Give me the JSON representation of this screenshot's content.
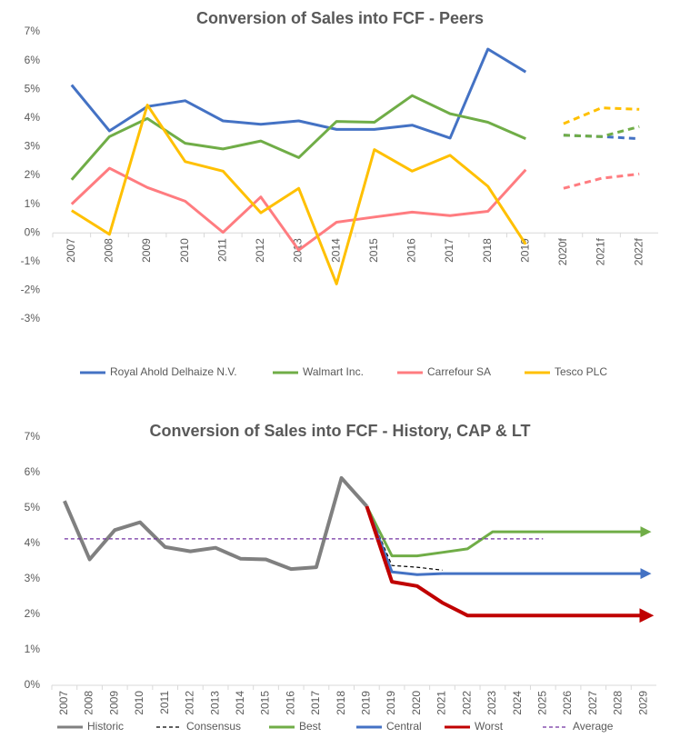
{
  "chart_data": [
    {
      "type": "line",
      "title": "Conversion of Sales into FCF - Peers",
      "categories": [
        "2007",
        "2008",
        "2009",
        "2010",
        "2011",
        "2012",
        "2013",
        "2014",
        "2015",
        "2016",
        "2017",
        "2018",
        "2019",
        "2020f",
        "2021f",
        "2022f"
      ],
      "ylim": [
        -3,
        7
      ],
      "yticks": [
        {
          "value": -3,
          "label": "-3%"
        },
        {
          "value": -2,
          "label": "-2%"
        },
        {
          "value": -1,
          "label": "-1%"
        },
        {
          "value": 0,
          "label": "0%"
        },
        {
          "value": 1,
          "label": "1%"
        },
        {
          "value": 2,
          "label": "2%"
        },
        {
          "value": 3,
          "label": "3%"
        },
        {
          "value": 4,
          "label": "4%"
        },
        {
          "value": 5,
          "label": "5%"
        },
        {
          "value": 6,
          "label": "6%"
        },
        {
          "value": 7,
          "label": "7%"
        }
      ],
      "grid": false,
      "legend": "bottom",
      "series": [
        {
          "name": "Royal Ahold Delhaize N.V.",
          "color": "#4472c4",
          "values": [
            5.15,
            3.55,
            4.4,
            4.6,
            3.9,
            3.78,
            3.9,
            3.6,
            3.6,
            3.75,
            3.3,
            6.4,
            5.6,
            null,
            null,
            null
          ],
          "forecast": [
            null,
            null,
            null,
            null,
            null,
            null,
            null,
            null,
            null,
            null,
            null,
            null,
            null,
            3.4,
            3.35,
            3.28
          ]
        },
        {
          "name": "Walmart Inc.",
          "color": "#70ad47",
          "values": [
            1.85,
            3.35,
            3.98,
            3.12,
            2.92,
            3.2,
            2.62,
            3.88,
            3.85,
            4.78,
            4.15,
            3.85,
            3.28,
            null,
            null,
            null
          ],
          "forecast": [
            null,
            null,
            null,
            null,
            null,
            null,
            null,
            null,
            null,
            null,
            null,
            null,
            null,
            3.4,
            3.35,
            3.7
          ]
        },
        {
          "name": "Carrefour SA",
          "color": "#ff7c80",
          "values": [
            1.0,
            2.25,
            1.58,
            1.1,
            0.02,
            1.25,
            -0.6,
            0.37,
            0.55,
            0.72,
            0.6,
            0.75,
            2.2,
            null,
            null,
            null
          ],
          "forecast": [
            null,
            null,
            null,
            null,
            null,
            null,
            null,
            null,
            null,
            null,
            null,
            null,
            null,
            1.55,
            1.9,
            2.05
          ]
        },
        {
          "name": "Tesco PLC",
          "color": "#ffc000",
          "values": [
            0.78,
            -0.05,
            4.45,
            2.48,
            2.15,
            0.7,
            1.55,
            -1.78,
            2.9,
            2.15,
            2.7,
            1.62,
            -0.4,
            null,
            null,
            null
          ],
          "forecast": [
            null,
            null,
            null,
            null,
            null,
            null,
            null,
            null,
            null,
            null,
            null,
            null,
            null,
            3.8,
            4.35,
            4.3
          ]
        }
      ]
    },
    {
      "type": "line",
      "title": "Conversion of Sales into FCF - History, CAP & LT",
      "categories": [
        "2007",
        "2008",
        "2009",
        "2010",
        "2011",
        "2012",
        "2013",
        "2014",
        "2015",
        "2016",
        "2017",
        "2018",
        "2019",
        "2019",
        "2020",
        "2021",
        "2022",
        "2023",
        "2024",
        "2025",
        "2026",
        "2027",
        "2028",
        "2029"
      ],
      "ylim": [
        0,
        7
      ],
      "yticks": [
        {
          "value": 0,
          "label": "0%"
        },
        {
          "value": 1,
          "label": "1%"
        },
        {
          "value": 2,
          "label": "2%"
        },
        {
          "value": 3,
          "label": "3%"
        },
        {
          "value": 4,
          "label": "4%"
        },
        {
          "value": 5,
          "label": "5%"
        },
        {
          "value": 6,
          "label": "6%"
        },
        {
          "value": 7,
          "label": "7%"
        }
      ],
      "grid": false,
      "legend": "bottom",
      "series": [
        {
          "name": "Historic",
          "color": "#808080",
          "values": [
            5.2,
            3.55,
            4.38,
            4.6,
            3.9,
            3.78,
            3.88,
            3.57,
            3.55,
            3.28,
            3.33,
            5.85,
            5.05,
            null,
            null,
            null,
            null,
            null,
            null,
            null,
            null,
            null,
            null,
            null
          ]
        },
        {
          "name": "Consensus",
          "color": "#000000",
          "dash": true,
          "values": [
            null,
            null,
            null,
            null,
            null,
            null,
            null,
            null,
            null,
            null,
            null,
            null,
            5.05,
            3.38,
            3.33,
            3.25,
            null,
            null,
            null,
            null,
            null,
            null,
            null,
            null
          ]
        },
        {
          "name": "Best",
          "color": "#70ad47",
          "arrow": true,
          "values": [
            null,
            null,
            null,
            null,
            null,
            null,
            null,
            null,
            null,
            null,
            null,
            null,
            5.05,
            3.65,
            3.65,
            3.75,
            3.85,
            4.33,
            4.33,
            4.33,
            4.33,
            4.33,
            4.33,
            4.33
          ]
        },
        {
          "name": "Central",
          "color": "#4472c4",
          "arrow": true,
          "values": [
            null,
            null,
            null,
            null,
            null,
            null,
            null,
            null,
            null,
            null,
            null,
            null,
            5.05,
            3.2,
            3.12,
            3.15,
            3.15,
            3.15,
            3.15,
            3.15,
            3.15,
            3.15,
            3.15,
            3.15
          ]
        },
        {
          "name": "Worst",
          "color": "#c00000",
          "arrow": true,
          "values": [
            null,
            null,
            null,
            null,
            null,
            null,
            null,
            null,
            null,
            null,
            null,
            null,
            5.05,
            2.92,
            2.8,
            2.33,
            1.97,
            1.97,
            1.97,
            1.97,
            1.97,
            1.97,
            1.97,
            1.97
          ]
        },
        {
          "name": "Average",
          "color": "#7030a0",
          "dash": true,
          "values": [
            4.13,
            4.13,
            4.13,
            4.13,
            4.13,
            4.13,
            4.13,
            4.13,
            4.13,
            4.13,
            4.13,
            4.13,
            4.13,
            4.13,
            4.13,
            4.13,
            4.13,
            4.13,
            4.13,
            4.13,
            null,
            null,
            null,
            null
          ]
        }
      ]
    }
  ]
}
